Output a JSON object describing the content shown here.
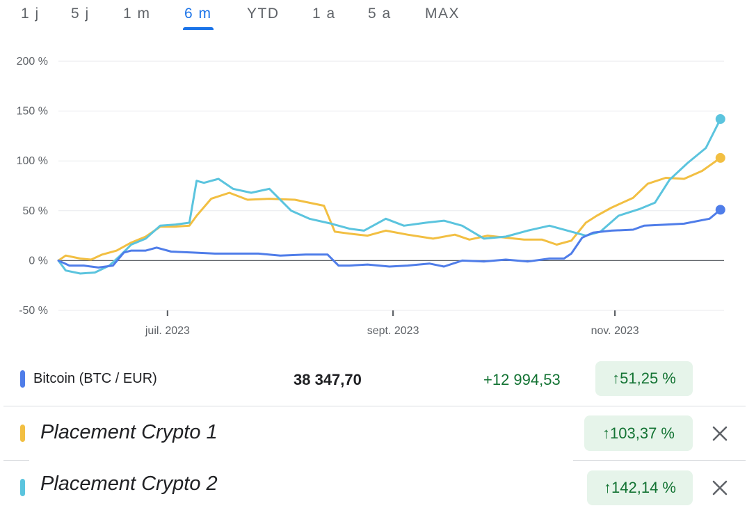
{
  "tabs": [
    {
      "label": "1 j",
      "active": false
    },
    {
      "label": "5 j",
      "active": false
    },
    {
      "label": "1 m",
      "active": false
    },
    {
      "label": "6 m",
      "active": true
    },
    {
      "label": "YTD",
      "active": false
    },
    {
      "label": "1 a",
      "active": false
    },
    {
      "label": "5 a",
      "active": false
    },
    {
      "label": "MAX",
      "active": false
    }
  ],
  "chart_data": {
    "type": "line",
    "y_ticks": [
      "200 %",
      "150 %",
      "100 %",
      "50 %",
      "0 %",
      "-50 %"
    ],
    "y_tick_values": [
      200,
      150,
      100,
      50,
      0,
      -50
    ],
    "ylim": [
      -50,
      200
    ],
    "x_ticks": [
      "juil. 2023",
      "sept. 2023",
      "nov. 2023"
    ],
    "x_tick_dates": [
      "2023-07-01",
      "2023-09-01",
      "2023-11-01"
    ],
    "x_range": [
      "2023-06-01",
      "2023-12-01"
    ],
    "grid": true,
    "series": [
      {
        "name": "Bitcoin (BTC / EUR)",
        "color": "#4f7de9",
        "x": [
          "2023-06-01",
          "2023-06-04",
          "2023-06-08",
          "2023-06-12",
          "2023-06-16",
          "2023-06-19",
          "2023-06-21",
          "2023-06-25",
          "2023-06-28",
          "2023-07-02",
          "2023-07-08",
          "2023-07-14",
          "2023-07-20",
          "2023-07-26",
          "2023-08-01",
          "2023-08-08",
          "2023-08-14",
          "2023-08-17",
          "2023-08-20",
          "2023-08-25",
          "2023-08-31",
          "2023-09-05",
          "2023-09-11",
          "2023-09-15",
          "2023-09-20",
          "2023-09-26",
          "2023-10-02",
          "2023-10-08",
          "2023-10-14",
          "2023-10-18",
          "2023-10-20",
          "2023-10-23",
          "2023-10-26",
          "2023-10-31",
          "2023-11-06",
          "2023-11-09",
          "2023-11-15",
          "2023-11-20",
          "2023-11-27",
          "2023-11-30"
        ],
        "values": [
          0,
          -5,
          -5,
          -7,
          -5,
          8,
          10,
          10,
          13,
          9,
          8,
          7,
          7,
          7,
          5,
          6,
          6,
          -5,
          -5,
          -4,
          -6,
          -5,
          -3,
          -6,
          0,
          -1,
          1,
          -1,
          2,
          2,
          7,
          23,
          28,
          30,
          31,
          35,
          36,
          37,
          42,
          51
        ]
      },
      {
        "name": "Placement Crypto 1",
        "color": "#f2bf42",
        "x": [
          "2023-06-01",
          "2023-06-03",
          "2023-06-07",
          "2023-06-10",
          "2023-06-13",
          "2023-06-17",
          "2023-06-21",
          "2023-06-25",
          "2023-06-29",
          "2023-07-03",
          "2023-07-07",
          "2023-07-09",
          "2023-07-13",
          "2023-07-18",
          "2023-07-23",
          "2023-07-29",
          "2023-08-05",
          "2023-08-13",
          "2023-08-16",
          "2023-08-20",
          "2023-08-25",
          "2023-08-30",
          "2023-09-05",
          "2023-09-12",
          "2023-09-18",
          "2023-09-22",
          "2023-09-27",
          "2023-10-02",
          "2023-10-07",
          "2023-10-12",
          "2023-10-16",
          "2023-10-20",
          "2023-10-24",
          "2023-10-27",
          "2023-10-31",
          "2023-11-06",
          "2023-11-10",
          "2023-11-15",
          "2023-11-20",
          "2023-11-25",
          "2023-11-30"
        ],
        "values": [
          0,
          5,
          2,
          1,
          6,
          10,
          18,
          24,
          34,
          34,
          35,
          45,
          62,
          68,
          61,
          62,
          61,
          55,
          29,
          27,
          25,
          30,
          26,
          22,
          26,
          21,
          25,
          23,
          21,
          21,
          16,
          20,
          38,
          45,
          53,
          63,
          77,
          83,
          82,
          90,
          103
        ]
      },
      {
        "name": "Placement Crypto 2",
        "color": "#5bc4de",
        "x": [
          "2023-06-01",
          "2023-06-03",
          "2023-06-07",
          "2023-06-11",
          "2023-06-15",
          "2023-06-18",
          "2023-06-21",
          "2023-06-25",
          "2023-06-29",
          "2023-07-03",
          "2023-07-07",
          "2023-07-09",
          "2023-07-11",
          "2023-07-15",
          "2023-07-19",
          "2023-07-24",
          "2023-07-29",
          "2023-08-04",
          "2023-08-09",
          "2023-08-15",
          "2023-08-20",
          "2023-08-24",
          "2023-08-30",
          "2023-09-04",
          "2023-09-10",
          "2023-09-15",
          "2023-09-20",
          "2023-09-26",
          "2023-10-02",
          "2023-10-08",
          "2023-10-14",
          "2023-10-19",
          "2023-10-24",
          "2023-10-28",
          "2023-11-02",
          "2023-11-08",
          "2023-11-12",
          "2023-11-16",
          "2023-11-21",
          "2023-11-26",
          "2023-11-30"
        ],
        "values": [
          0,
          -10,
          -13,
          -12,
          -5,
          5,
          16,
          22,
          35,
          36,
          38,
          80,
          78,
          82,
          72,
          68,
          72,
          50,
          42,
          37,
          32,
          30,
          42,
          35,
          38,
          40,
          35,
          22,
          24,
          30,
          35,
          30,
          25,
          29,
          45,
          52,
          58,
          81,
          98,
          113,
          142
        ]
      }
    ]
  },
  "assets": [
    {
      "name": "Bitcoin (BTC / EUR)",
      "color": "#4f7de9",
      "price": "38 347,70",
      "change": "+12 994,53",
      "change_pct": "↑51,25 %"
    },
    {
      "name": "Placement Crypto 1",
      "color": "#f2bf42",
      "change_pct": "↑103,37 %"
    },
    {
      "name": "Placement Crypto 2",
      "color": "#5bc4de",
      "change_pct": "↑142,14 %"
    }
  ],
  "icons": {
    "remove": "close-icon"
  }
}
